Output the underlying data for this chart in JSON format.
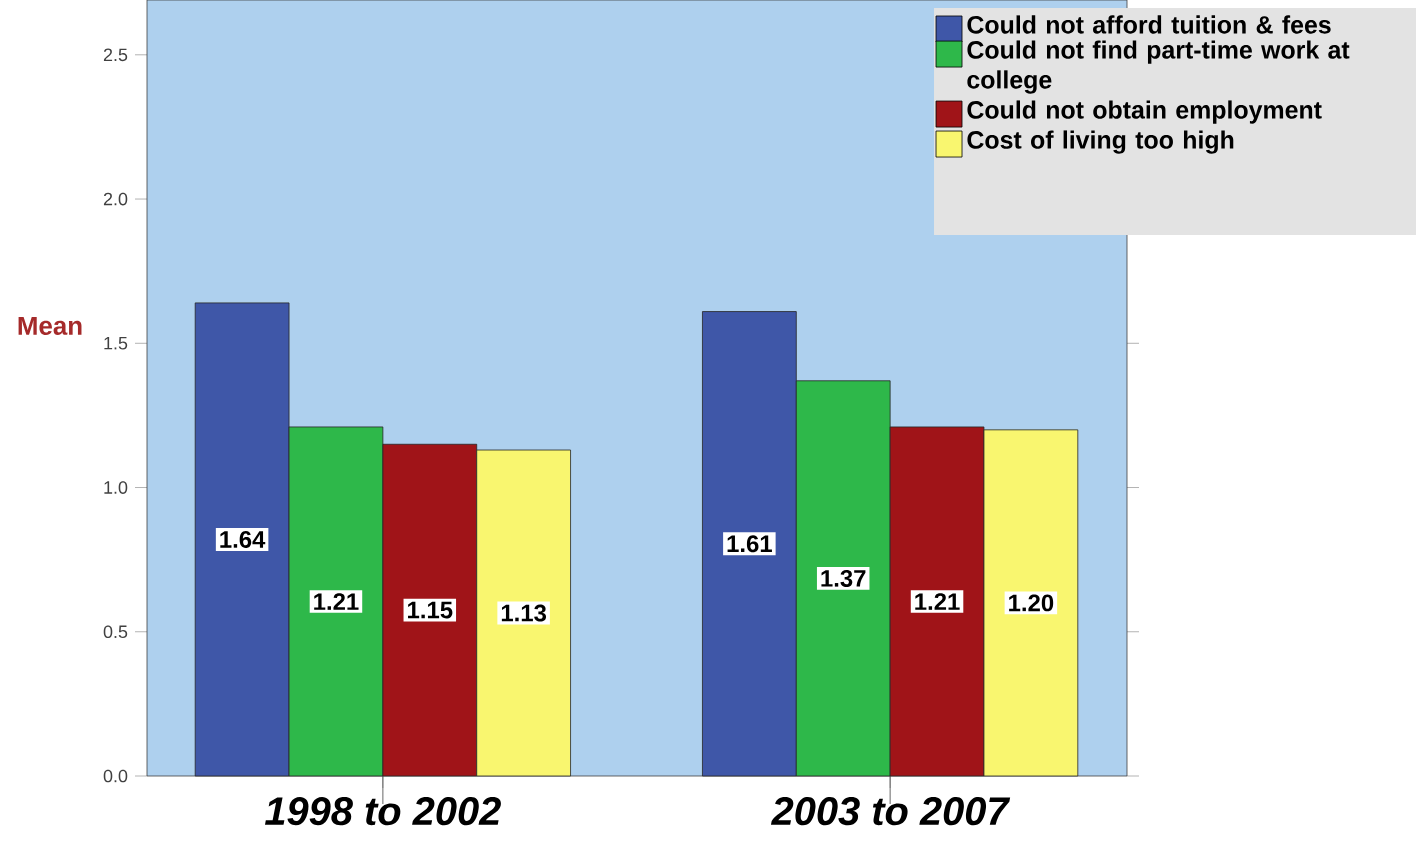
{
  "chart_data": {
    "type": "bar",
    "ylabel": "Mean",
    "categories": [
      "1998 to 2002",
      "2003 to 2007"
    ],
    "series": [
      {
        "name": "Could not afford tuition & fees",
        "color": "#3f57a8",
        "values": [
          1.64,
          1.61
        ],
        "value_labels": [
          "1.64",
          "1.61"
        ]
      },
      {
        "name": "Could not find part-time work at college",
        "color": "#2eb84a",
        "values": [
          1.21,
          1.37
        ],
        "value_labels": [
          "1.21",
          "1.37"
        ]
      },
      {
        "name": "Could not obtain employment",
        "color": "#a01418",
        "values": [
          1.15,
          1.21
        ],
        "value_labels": [
          "1.15",
          "1.21"
        ]
      },
      {
        "name": "Cost of living too high",
        "color": "#f9f66f",
        "values": [
          1.13,
          1.2
        ],
        "value_labels": [
          "1.13",
          "1.20"
        ]
      }
    ],
    "ylim": [
      0,
      2.69
    ],
    "yticks": [
      {
        "value": 0,
        "label": "0.0"
      },
      {
        "value": 0.5,
        "label": "0.5"
      },
      {
        "value": 1,
        "label": "1.0"
      },
      {
        "value": 1.5,
        "label": "1.5"
      },
      {
        "value": 2,
        "label": "2.0"
      },
      {
        "value": 2.5,
        "label": "2.5"
      }
    ],
    "legend": "top right"
  }
}
